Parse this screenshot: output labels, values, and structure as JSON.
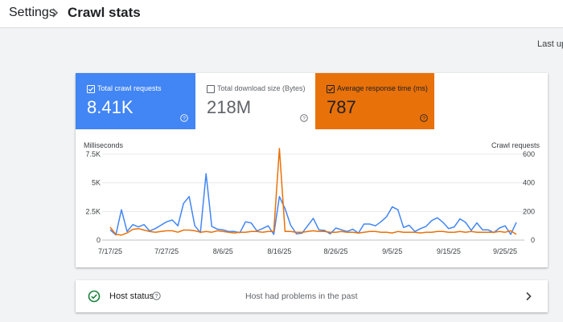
{
  "breadcrumb": {
    "parent": "Settings",
    "current": "Crawl stats"
  },
  "last_updated_label": "Last up",
  "metrics": [
    {
      "label": "Total crawl requests",
      "value": "8.41K",
      "checked": true,
      "color": "#4285f4"
    },
    {
      "label": "Total download size (Bytes)",
      "value": "218M",
      "checked": false,
      "color": "#ffffff"
    },
    {
      "label": "Average response time (ms)",
      "value": "787",
      "checked": true,
      "color": "#e8710a"
    }
  ],
  "host_status": {
    "label": "Host status",
    "status_text": "Host had problems in the past"
  },
  "chart_data": {
    "type": "line",
    "left_axis_label": "Milliseconds",
    "right_axis_label": "Crawl requests",
    "left_ticks": [
      "0",
      "2.5K",
      "5K",
      "7.5K"
    ],
    "right_ticks": [
      "0",
      "200",
      "400",
      "600"
    ],
    "left_ylim": [
      0,
      7500
    ],
    "right_ylim": [
      0,
      600
    ],
    "x_tick_labels": [
      "7/17/25",
      "7/27/25",
      "8/6/25",
      "8/16/25",
      "8/26/25",
      "9/5/25",
      "9/15/25",
      "9/25/25"
    ],
    "x_tick_day_index": [
      0,
      10,
      20,
      30,
      40,
      50,
      60,
      70
    ],
    "grid": true,
    "series": [
      {
        "axis": "left",
        "color": "#4285f4",
        "values": [
          900,
          450,
          2650,
          750,
          1350,
          1150,
          1350,
          800,
          1000,
          1300,
          1600,
          1750,
          1250,
          3200,
          3800,
          1250,
          650,
          5800,
          1200,
          950,
          900,
          750,
          750,
          650,
          1600,
          1500,
          800,
          1000,
          1250,
          500,
          3800,
          2750,
          1300,
          550,
          600,
          1250,
          1900,
          900,
          850,
          550,
          1050,
          900,
          750,
          950,
          600,
          1400,
          1400,
          1250,
          1600,
          2050,
          2900,
          2650,
          1100,
          1300,
          750,
          1000,
          1200,
          1700,
          1950,
          1550,
          1000,
          1150,
          1850,
          1550,
          850,
          1500,
          900,
          900,
          650,
          1050,
          1250,
          500,
          1550
        ]
      },
      {
        "axis": "right",
        "color": "#e8710a",
        "values": [
          90,
          40,
          35,
          50,
          75,
          80,
          70,
          60,
          55,
          60,
          65,
          65,
          55,
          70,
          70,
          65,
          55,
          60,
          55,
          65,
          60,
          55,
          50,
          55,
          55,
          60,
          60,
          55,
          60,
          60,
          640,
          60,
          60,
          55,
          55,
          60,
          65,
          60,
          60,
          55,
          55,
          60,
          55,
          55,
          50,
          55,
          60,
          60,
          55,
          55,
          50,
          60,
          55,
          55,
          55,
          50,
          55,
          55,
          60,
          60,
          55,
          55,
          60,
          55,
          60,
          55,
          55,
          55,
          55,
          60,
          55,
          65,
          40
        ]
      }
    ]
  }
}
